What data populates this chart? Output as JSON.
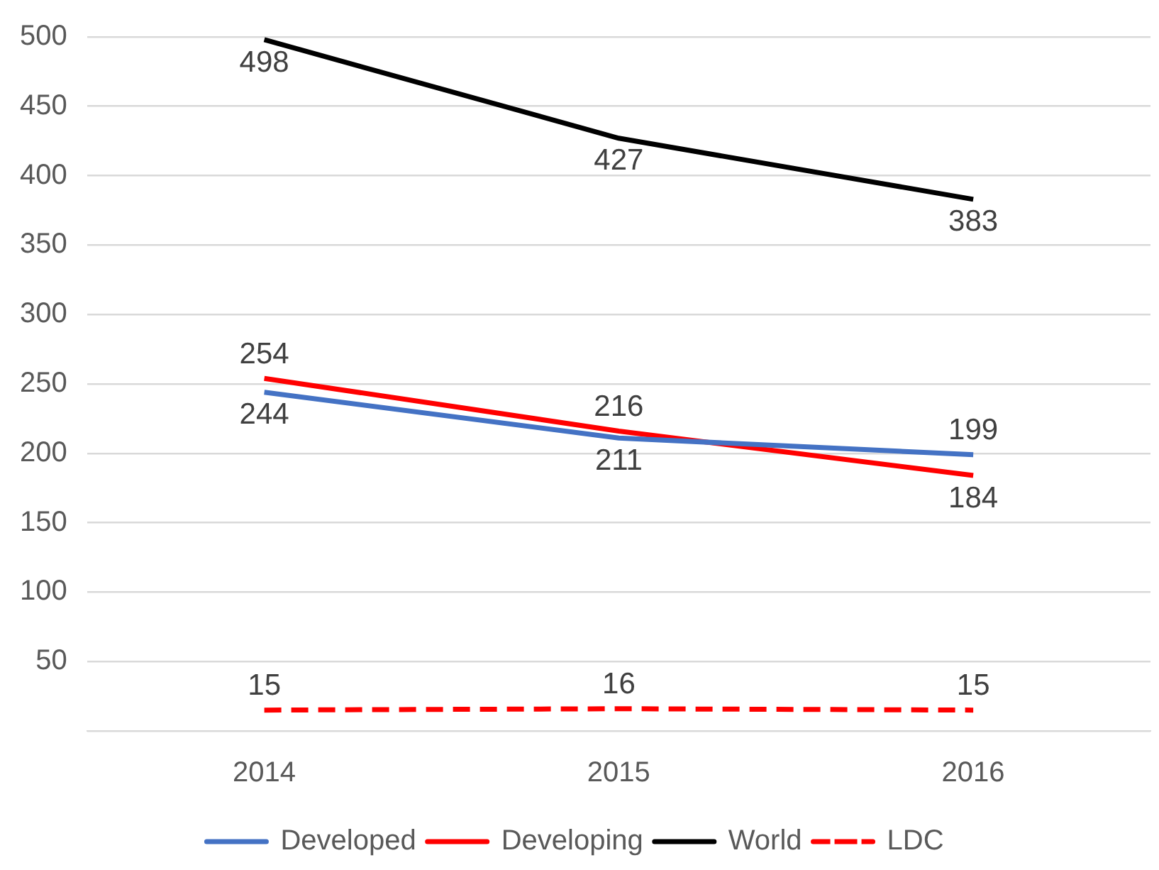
{
  "chart_data": {
    "type": "line",
    "categories": [
      "2014",
      "2015",
      "2016"
    ],
    "series": [
      {
        "name": "Developed",
        "color": "#4472c4",
        "values": [
          244,
          211,
          199
        ]
      },
      {
        "name": "Developing",
        "color": "#ff0000",
        "values": [
          254,
          216,
          184
        ]
      },
      {
        "name": "World",
        "color": "#000000",
        "values": [
          498,
          427,
          383
        ]
      },
      {
        "name": "LDC",
        "color": "#ff0000",
        "values": [
          15,
          16,
          15
        ],
        "line_style": "dashed"
      }
    ],
    "ylim": [
      0,
      500
    ],
    "yticks": [
      {
        "value": 0,
        "label": null
      },
      50,
      100,
      150,
      200,
      250,
      300,
      350,
      400,
      450,
      500
    ],
    "grid": "y",
    "legend": "bottom",
    "data_labels": true,
    "marker": "none",
    "line_style": "solid"
  }
}
